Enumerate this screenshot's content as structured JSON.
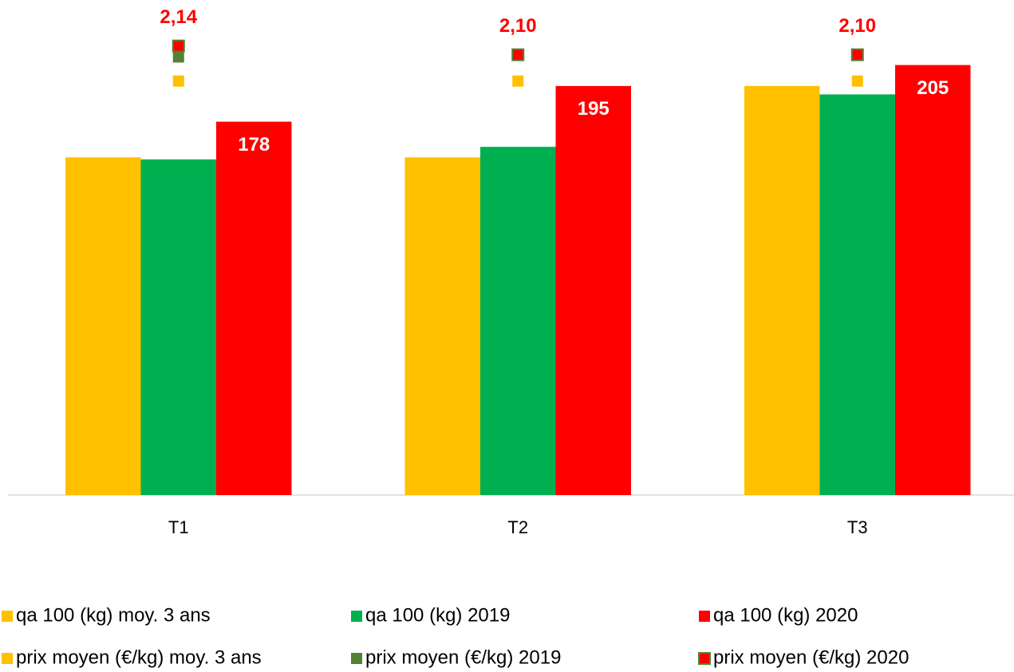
{
  "chart_data": {
    "type": "bar",
    "categories": [
      "T1",
      "T2",
      "T3"
    ],
    "ylim": [
      0,
      236
    ],
    "y2lim": [
      0.09,
      2.35
    ],
    "series": [
      {
        "name": "qa 100 (kg) moy. 3 ans",
        "color": "#FFC000",
        "values": [
          161,
          161,
          195
        ]
      },
      {
        "name": "qa 100 (kg) 2019",
        "color": "#00B050",
        "values": [
          160,
          166,
          191
        ]
      },
      {
        "name": "qa 100 (kg) 2020",
        "color": "#FF0000",
        "values": [
          178,
          195,
          205
        ],
        "label_color": "#FFFFFF"
      },
      {
        "name": "prix moyen (€/kg) moy. 3 ans",
        "color": "#FFC000",
        "axis": "y2",
        "values": [
          1.98,
          1.98,
          1.98
        ]
      },
      {
        "name": "prix moyen (€/kg) 2019",
        "color": "#548235",
        "axis": "y2",
        "values": [
          2.09,
          2.1,
          2.1
        ]
      },
      {
        "name": "prix moyen (€/kg) 2020",
        "color": "#FF0000",
        "edge_color": "#548235",
        "axis": "y2",
        "values": [
          2.14,
          2.1,
          2.1
        ],
        "value_labels": [
          "2,14",
          "2,10",
          "2,10"
        ],
        "label_color": "#FF0000"
      }
    ]
  }
}
